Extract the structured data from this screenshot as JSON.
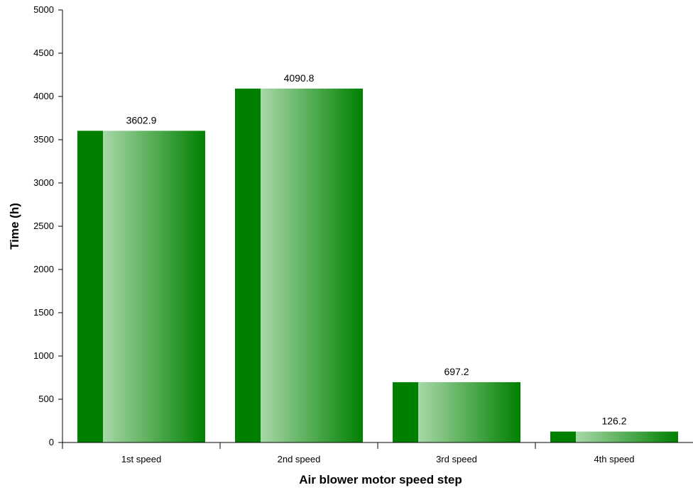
{
  "chart_data": {
    "type": "bar",
    "categories": [
      "1st speed",
      "2nd speed",
      "3rd speed",
      "4th speed"
    ],
    "values": [
      3602.9,
      4090.8,
      697.2,
      126.2
    ],
    "data_labels": [
      "3602.9",
      "4090.8",
      "697.2",
      "126.2"
    ],
    "title": "",
    "xlabel": "Air blower motor speed step",
    "ylabel": "Time (h)",
    "ylim": [
      0,
      5000
    ],
    "yticks": [
      0,
      500,
      1000,
      1500,
      2000,
      2500,
      3000,
      3500,
      4000,
      4500,
      5000
    ],
    "grid": false,
    "legend": "none",
    "colors": {
      "bar_dark": "#008000",
      "bar_light": "#a8d8a8",
      "axis": "#000000",
      "text": "#000000"
    }
  }
}
